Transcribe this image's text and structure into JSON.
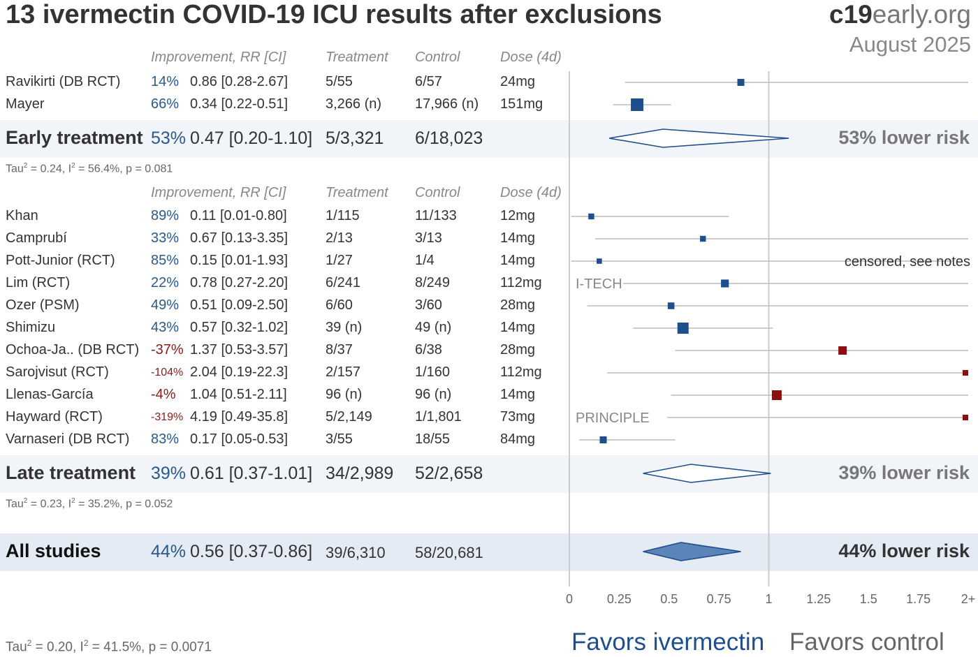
{
  "header": {
    "title": "13 ivermectin COVID-19 ICU results after exclusions",
    "site_bold": "c19",
    "site_light": "early",
    "site_tld": ".org",
    "date": "August 2025"
  },
  "columns": {
    "improvement": "Improvement, RR [CI]",
    "treatment": "Treatment",
    "control": "Control",
    "dose": "Dose (4d)"
  },
  "groups": {
    "early": {
      "name": "Early treatment",
      "improvement": "53%",
      "rr": "0.47 [0.20-1.10]",
      "treatment": "5/3,321",
      "control": "6/18,023",
      "stats_tau": "Tau",
      "stats_rest": " = 0.24, I",
      "stats_rest2": " = 56.4%, p = 0.081",
      "risk": "53% lower risk"
    },
    "late": {
      "name": "Late treatment",
      "improvement": "39%",
      "rr": "0.61 [0.37-1.01]",
      "treatment": "34/2,989",
      "control": "52/2,658",
      "stats_tau": "Tau",
      "stats_rest": " = 0.23, I",
      "stats_rest2": " = 35.2%, p = 0.052",
      "risk": "39% lower risk"
    },
    "all": {
      "name": "All studies",
      "improvement": "44%",
      "rr": "0.56 [0.37-0.86]",
      "treatment": "39/6,310",
      "control": "58/20,681",
      "risk": "44% lower risk"
    }
  },
  "footer": {
    "stats_tau": "Tau",
    "stats_rest": " = 0.20, I",
    "stats_rest2": " = 41.5%, p = 0.0071",
    "favors_left": "Favors ivermectin",
    "favors_right": "Favors control"
  },
  "annotations": {
    "censored": "censored, see notes",
    "itech": "I-TECH",
    "principle": "PRINCIPLE"
  },
  "colors": {
    "favor": "#1f4e8c",
    "against": "#8b0f0f",
    "ci_line": "#bbbbbb",
    "band": "#f1f4f8",
    "band_all": "#e4ebf4",
    "improvement_text": "#2a5a8c"
  },
  "chart_data": {
    "type": "forest",
    "xlabel": "",
    "xlim": [
      0,
      2
    ],
    "xticks": [
      "0",
      "0.25",
      "0.5",
      "0.75",
      "1",
      "1.25",
      "1.5",
      "1.75",
      "2+"
    ],
    "early_studies": [
      {
        "name": "Ravikirti (DB RCT)",
        "improvement": "14%",
        "rr_text": "0.86 [0.28-2.67]",
        "treatment": "5/55",
        "control": "6/57",
        "dose": "24mg",
        "rr": 0.86,
        "lo": 0.28,
        "hi": 2.67,
        "weight": 1
      },
      {
        "name": "Mayer",
        "improvement": "66%",
        "rr_text": "0.34 [0.22-0.51]",
        "treatment": "3,266 (n)",
        "control": "17,966 (n)",
        "dose": "151mg",
        "rr": 0.34,
        "lo": 0.22,
        "hi": 0.51,
        "weight": 3
      }
    ],
    "late_studies": [
      {
        "name": "Khan",
        "improvement": "89%",
        "rr_text": "0.11 [0.01-0.80]",
        "treatment": "1/115",
        "control": "11/133",
        "dose": "12mg",
        "rr": 0.11,
        "lo": 0.01,
        "hi": 0.8,
        "weight": 0.6
      },
      {
        "name": "Camprubí",
        "improvement": "33%",
        "rr_text": "0.67 [0.13-3.35]",
        "treatment": "2/13",
        "control": "3/13",
        "dose": "14mg",
        "rr": 0.67,
        "lo": 0.13,
        "hi": 3.35,
        "weight": 0.6
      },
      {
        "name": "Pott-Junior (RCT)",
        "improvement": "85%",
        "rr_text": "0.15 [0.01-1.93]",
        "treatment": "1/27",
        "control": "1/4",
        "dose": "14mg",
        "rr": 0.15,
        "lo": 0.01,
        "hi": 1.93,
        "weight": 0.4
      },
      {
        "name": "Lim (RCT)",
        "improvement": "22%",
        "rr_text": "0.78 [0.27-2.20]",
        "treatment": "6/241",
        "control": "8/249",
        "dose": "112mg",
        "rr": 0.78,
        "lo": 0.27,
        "hi": 2.2,
        "weight": 1.3
      },
      {
        "name": "Ozer (PSM)",
        "improvement": "49%",
        "rr_text": "0.51 [0.09-2.50]",
        "treatment": "6/60",
        "control": "3/60",
        "dose": "28mg",
        "rr": 0.51,
        "lo": 0.09,
        "hi": 2.5,
        "weight": 0.9
      },
      {
        "name": "Shimizu",
        "improvement": "43%",
        "rr_text": "0.57 [0.32-1.02]",
        "treatment": "39 (n)",
        "control": "49 (n)",
        "dose": "14mg",
        "rr": 0.57,
        "lo": 0.32,
        "hi": 1.02,
        "weight": 2.5
      },
      {
        "name": "Ochoa-Ja.. (DB RCT)",
        "improvement": "-37%",
        "rr_text": "1.37 [0.53-3.57]",
        "treatment": "8/37",
        "control": "6/38",
        "dose": "28mg",
        "rr": 1.37,
        "lo": 0.53,
        "hi": 3.57,
        "weight": 1.5
      },
      {
        "name": "Sarojvisut (RCT)",
        "improvement": "-104%",
        "rr_text": "2.04 [0.19-22.3]",
        "treatment": "2/157",
        "control": "1/160",
        "dose": "112mg",
        "rr": 2.04,
        "lo": 0.19,
        "hi": 22.3,
        "weight": 0.5
      },
      {
        "name": "Llenas-García",
        "improvement": "-4%",
        "rr_text": "1.04 [0.51-2.11]",
        "treatment": "96 (n)",
        "control": "96 (n)",
        "dose": "14mg",
        "rr": 1.04,
        "lo": 0.51,
        "hi": 2.11,
        "weight": 2
      },
      {
        "name": "Hayward (RCT)",
        "improvement": "-319%",
        "rr_text": "4.19 [0.49-35.8]",
        "treatment": "5/2,149",
        "control": "1/1,801",
        "dose": "73mg",
        "rr": 4.19,
        "lo": 0.49,
        "hi": 35.8,
        "weight": 0.5
      },
      {
        "name": "Varnaseri (DB RCT)",
        "improvement": "83%",
        "rr_text": "0.17 [0.05-0.53]",
        "treatment": "3/55",
        "control": "18/55",
        "dose": "84mg",
        "rr": 0.17,
        "lo": 0.05,
        "hi": 0.53,
        "weight": 1
      }
    ],
    "summaries": {
      "early": {
        "rr": 0.47,
        "lo": 0.2,
        "hi": 1.1
      },
      "late": {
        "rr": 0.61,
        "lo": 0.37,
        "hi": 1.01
      },
      "all": {
        "rr": 0.56,
        "lo": 0.37,
        "hi": 0.86
      }
    }
  }
}
